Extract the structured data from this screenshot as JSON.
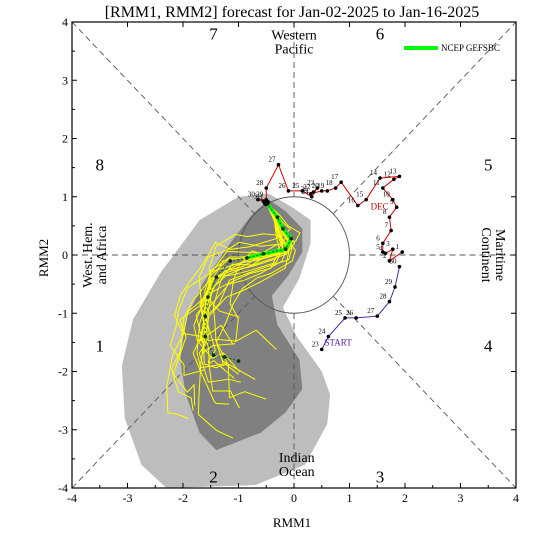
{
  "chart_data": {
    "type": "line",
    "title": "[RMM1, RMM2] forecast for Jan-02-2025 to Jan-16-2025",
    "xlabel": "RMM1",
    "ylabel": "RMM2",
    "xlim": [
      -4,
      4
    ],
    "ylim": [
      -4,
      4
    ],
    "xticks": [
      "-4",
      "-3",
      "-2",
      "-1",
      "0",
      "1",
      "2",
      "3",
      "4"
    ],
    "yticks": [
      "-4",
      "-3",
      "-2",
      "-1",
      "0",
      "1",
      "2",
      "3",
      "4"
    ],
    "phases": [
      {
        "label": "1",
        "x": -3.5,
        "y": -1.55
      },
      {
        "label": "2",
        "x": -1.45,
        "y": -3.8
      },
      {
        "label": "3",
        "x": 1.55,
        "y": -3.8
      },
      {
        "label": "4",
        "x": 3.5,
        "y": -1.55
      },
      {
        "label": "5",
        "x": 3.5,
        "y": 1.55
      },
      {
        "label": "6",
        "x": 1.55,
        "y": 3.8
      },
      {
        "label": "7",
        "x": -1.45,
        "y": 3.8
      },
      {
        "label": "8",
        "x": -3.5,
        "y": 1.55
      }
    ],
    "regions": [
      {
        "lines": [
          "Western",
          "Pacific"
        ],
        "x": 0,
        "y": 3.7,
        "anchor": "middle",
        "rotate": 0
      },
      {
        "lines": [
          "Indian",
          "Ocean"
        ],
        "x": 0.05,
        "y": -3.55,
        "anchor": "middle",
        "rotate": 0
      },
      {
        "lines": [
          "West. Hem.",
          "and Africa"
        ],
        "x": -3.6,
        "y": 0,
        "anchor": "middle",
        "rotate": -90
      },
      {
        "lines": [
          "Maritime",
          "Continent"
        ],
        "x": 3.6,
        "y": 0,
        "anchor": "middle",
        "rotate": 90
      }
    ],
    "legend": {
      "label": "NCEP GEFSBC",
      "placement": "top-right",
      "color": "#00ff00"
    },
    "annotations": [
      {
        "text": "DEC",
        "x": 1.38,
        "y": 0.78,
        "color": "#cc0000"
      },
      {
        "text": "START",
        "x": 0.55,
        "y": -1.55,
        "color": "#5522aa"
      }
    ],
    "observed_nov": [
      {
        "day": "23",
        "x": 0.5,
        "y": -1.62
      },
      {
        "day": "24",
        "x": 0.62,
        "y": -1.4
      },
      {
        "day": "25",
        "x": 0.92,
        "y": -1.08
      },
      {
        "day": "26",
        "x": 1.12,
        "y": -1.08
      },
      {
        "day": "27",
        "x": 1.5,
        "y": -1.05
      },
      {
        "day": "28",
        "x": 1.72,
        "y": -0.8
      },
      {
        "day": "29",
        "x": 1.82,
        "y": -0.55
      },
      {
        "day": "30",
        "x": 1.9,
        "y": -0.2
      }
    ],
    "observed_dec": [
      {
        "day": "1",
        "x": 1.95,
        "y": 0.05
      },
      {
        "day": "2",
        "x": 1.72,
        "y": -0.1
      },
      {
        "day": "3",
        "x": 1.78,
        "y": 0.1
      },
      {
        "day": "4",
        "x": 1.65,
        "y": 0.03
      },
      {
        "day": "5",
        "x": 1.6,
        "y": 0.05
      },
      {
        "day": "6",
        "x": 1.6,
        "y": 0.2
      },
      {
        "day": "7",
        "x": 1.75,
        "y": 0.42
      },
      {
        "day": "8",
        "x": 1.72,
        "y": 0.65
      },
      {
        "day": "9",
        "x": 1.85,
        "y": 0.82
      },
      {
        "day": "10",
        "x": 1.78,
        "y": 0.95
      },
      {
        "day": "11",
        "x": 1.6,
        "y": 1.15
      },
      {
        "day": "12",
        "x": 1.8,
        "y": 1.3
      },
      {
        "day": "13",
        "x": 1.9,
        "y": 1.35
      },
      {
        "day": "14",
        "x": 1.55,
        "y": 1.32
      },
      {
        "day": "15",
        "x": 1.3,
        "y": 0.95
      },
      {
        "day": "16",
        "x": 1.15,
        "y": 0.85
      },
      {
        "day": "17",
        "x": 0.85,
        "y": 1.25
      },
      {
        "day": "18",
        "x": 0.75,
        "y": 1.15
      },
      {
        "day": "19",
        "x": 0.6,
        "y": 1.1
      },
      {
        "day": "20",
        "x": 0.5,
        "y": 1.1
      },
      {
        "day": "21",
        "x": 0.3,
        "y": 1.05
      },
      {
        "day": "22",
        "x": 0.35,
        "y": 1.08
      },
      {
        "day": "23",
        "x": 0.42,
        "y": 1.15
      },
      {
        "day": "24",
        "x": 0.32,
        "y": 1.0
      },
      {
        "day": "25",
        "x": 0.15,
        "y": 1.1
      },
      {
        "day": "26",
        "x": -0.1,
        "y": 1.1
      },
      {
        "day": "27",
        "x": -0.28,
        "y": 1.55
      },
      {
        "day": "28",
        "x": -0.5,
        "y": 1.15
      },
      {
        "day": "29",
        "x": -0.5,
        "y": 0.95
      },
      {
        "day": "30",
        "x": -0.65,
        "y": 0.95
      },
      {
        "day": "31",
        "x": -0.55,
        "y": 0.92
      },
      {
        "day": "1",
        "x": -0.5,
        "y": 0.9
      }
    ],
    "forecast": [
      {
        "x": -0.5,
        "y": 0.9
      },
      {
        "x": -0.3,
        "y": 0.65
      },
      {
        "x": -0.2,
        "y": 0.45
      },
      {
        "x": -0.05,
        "y": 0.28
      },
      {
        "x": -0.15,
        "y": 0.1
      },
      {
        "x": -0.55,
        "y": 0.02
      },
      {
        "x": -0.85,
        "y": -0.05
      },
      {
        "x": -1.15,
        "y": -0.1
      },
      {
        "x": -1.4,
        "y": -0.38
      },
      {
        "x": -1.55,
        "y": -0.72
      },
      {
        "x": -1.6,
        "y": -1.05
      },
      {
        "x": -1.6,
        "y": -1.4
      },
      {
        "x": -1.45,
        "y": -1.72
      },
      {
        "x": -1.25,
        "y": -1.75
      },
      {
        "x": -1.0,
        "y": -1.82
      }
    ],
    "forecast_highlight_points": 6,
    "ensemble_members": 20,
    "outer_band": [
      [
        -0.45,
        1.05
      ],
      [
        0.0,
        0.8
      ],
      [
        0.3,
        0.6
      ],
      [
        0.3,
        0.2
      ],
      [
        0.1,
        -0.4
      ],
      [
        -0.2,
        -0.9
      ],
      [
        0.05,
        -1.4
      ],
      [
        0.5,
        -2.0
      ],
      [
        0.65,
        -2.4
      ],
      [
        0.6,
        -2.9
      ],
      [
        0.2,
        -3.6
      ],
      [
        -0.7,
        -3.95
      ],
      [
        -2.3,
        -4.0
      ],
      [
        -2.75,
        -3.6
      ],
      [
        -3.05,
        -2.8
      ],
      [
        -3.1,
        -1.9
      ],
      [
        -2.9,
        -1.1
      ],
      [
        -2.4,
        -0.3
      ],
      [
        -1.7,
        0.6
      ],
      [
        -1.0,
        1.0
      ]
    ],
    "inner_band": [
      [
        -0.45,
        0.95
      ],
      [
        -0.15,
        0.75
      ],
      [
        0.15,
        0.45
      ],
      [
        0.15,
        0.05
      ],
      [
        -0.1,
        -0.35
      ],
      [
        -0.4,
        -0.7
      ],
      [
        -0.3,
        -1.2
      ],
      [
        0.1,
        -1.8
      ],
      [
        0.15,
        -2.3
      ],
      [
        -0.15,
        -2.7
      ],
      [
        -0.6,
        -3.05
      ],
      [
        -1.4,
        -3.35
      ],
      [
        -1.7,
        -3.05
      ],
      [
        -1.95,
        -2.4
      ],
      [
        -2.05,
        -1.8
      ],
      [
        -1.95,
        -1.1
      ],
      [
        -1.65,
        -0.5
      ],
      [
        -1.15,
        0.2
      ],
      [
        -0.75,
        0.7
      ]
    ],
    "colors": {
      "outer_band": "#bdbdbd",
      "inner_band": "#808080",
      "ensemble": "#ffff00",
      "forecast": "#00ff00",
      "observed_nov": "#5522aa",
      "observed_dec": "#cc0000"
    }
  }
}
